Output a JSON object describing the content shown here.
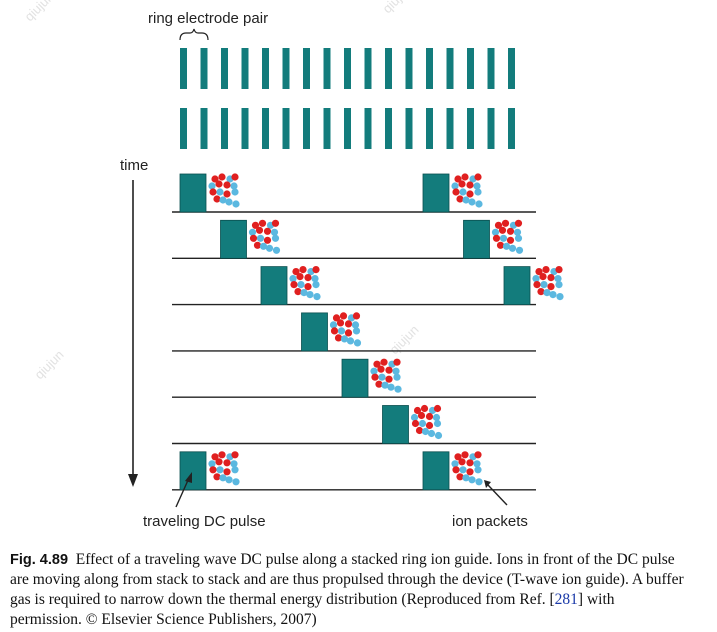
{
  "figure": {
    "label_electrode_pair": "ring electrode pair",
    "label_time": "time",
    "label_pulse": "traveling DC pulse",
    "label_packets": "ion packets",
    "watermark": "qiujun",
    "colors": {
      "electrode": "#137c7c",
      "pulse": "#137c7c",
      "ion_red": "#e02020",
      "ion_blue": "#5bb8e0",
      "line": "#222222"
    },
    "electrode_count_per_row": 17,
    "electrode_rows": 2,
    "time_steps": 7,
    "pulse_positions_by_step": [
      [
        0,
        6
      ],
      [
        1,
        7
      ],
      [
        2,
        8
      ],
      [
        3
      ],
      [
        4
      ],
      [
        5
      ],
      [
        0,
        6
      ]
    ]
  },
  "caption": {
    "label": "Fig. 4.89",
    "text_before_ref": "Effect of a traveling wave DC pulse along a stacked ring ion guide. Ions in front of the DC pulse are moving along from stack to stack and are thus propulsed through the device (T-wave ion guide). A buffer gas is required to narrow down the thermal energy distribution (Reproduced from Ref. [",
    "ref": "281",
    "text_after_ref": "] with permission. © Elsevier Science Publishers, 2007)"
  }
}
